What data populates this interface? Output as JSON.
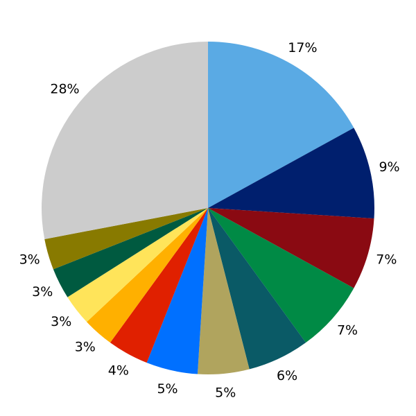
{
  "chart_data": {
    "type": "pie",
    "title": "",
    "start_angle": "top",
    "direction": "clockwise",
    "slices": [
      {
        "label": "17%",
        "value": 17,
        "color": "#5aaae4"
      },
      {
        "label": "9%",
        "value": 9,
        "color": "#001f6e"
      },
      {
        "label": "7%",
        "value": 7,
        "color": "#8a0a12"
      },
      {
        "label": "7%",
        "value": 7,
        "color": "#008a45"
      },
      {
        "label": "6%",
        "value": 6,
        "color": "#0a5a66"
      },
      {
        "label": "5%",
        "value": 5,
        "color": "#b0a45e"
      },
      {
        "label": "5%",
        "value": 5,
        "color": "#0070ff"
      },
      {
        "label": "4%",
        "value": 4,
        "color": "#e02000"
      },
      {
        "label": "3%",
        "value": 3,
        "color": "#ffb000"
      },
      {
        "label": "3%",
        "value": 3,
        "color": "#ffe45a"
      },
      {
        "label": "3%",
        "value": 3,
        "color": "#005a40"
      },
      {
        "label": "3%",
        "value": 3,
        "color": "#887a00"
      },
      {
        "label": "28%",
        "value": 28,
        "color": "#cccccc"
      }
    ]
  }
}
